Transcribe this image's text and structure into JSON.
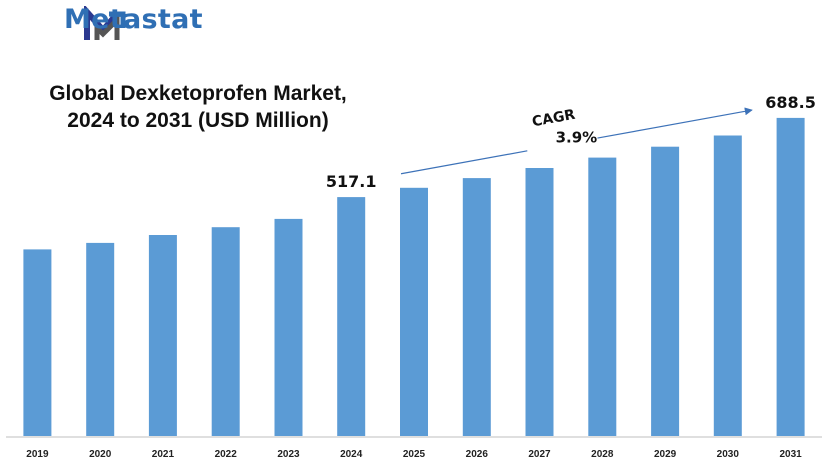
{
  "brand": {
    "name": "Metastat",
    "logo_icon": "metastat-m-logo-icon",
    "color": "#2f6fb4",
    "logo_colors": [
      "#2b3990",
      "#2f6fb4",
      "#555555"
    ]
  },
  "chart_data": {
    "type": "bar",
    "title_lines": [
      "Global Dexketoprofen Market,",
      "2024 to 2031 (USD Million)"
    ],
    "categories": [
      "2019",
      "2020",
      "2021",
      "2022",
      "2023",
      "2024",
      "2025",
      "2026",
      "2027",
      "2028",
      "2029",
      "2030",
      "2031"
    ],
    "values": [
      404,
      418,
      435,
      452,
      470,
      517.1,
      537.3,
      558.2,
      580.0,
      602.6,
      626.1,
      650.5,
      688.5
    ],
    "data_labels": [
      {
        "category": "2024",
        "text": "517.1"
      },
      {
        "category": "2031",
        "text": "688.5"
      }
    ],
    "annotation": {
      "label": "CAGR",
      "value": "3.9%",
      "from_category": "2025",
      "to_category": "2030"
    },
    "ylim": [
      0,
      750
    ],
    "bar_color": "#5b9bd5",
    "grid": false,
    "legend": "none",
    "xlabel": "",
    "ylabel": ""
  }
}
